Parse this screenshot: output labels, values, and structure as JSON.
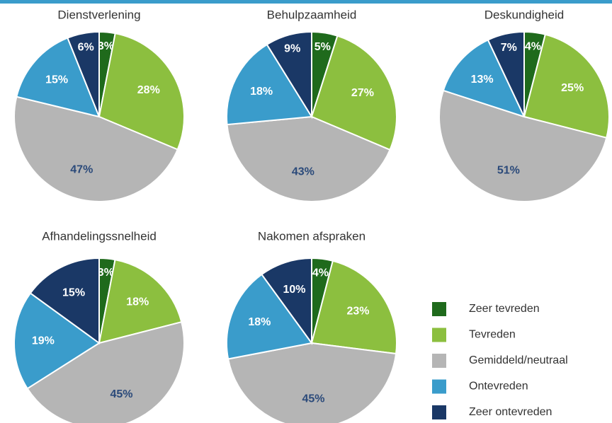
{
  "legend": {
    "names": [
      "Zeer tevreden",
      "Tevreden",
      "Gemiddeld/neutraal",
      "Ontevreden",
      "Zeer ontevreden"
    ],
    "colors": [
      "#1f6a1c",
      "#8cbf3f",
      "#b5b5b5",
      "#3a9ccb",
      "#1a3866"
    ]
  },
  "chart_data": [
    {
      "type": "pie",
      "title": "Dienstverlening",
      "values": [
        3,
        28,
        47,
        15,
        6
      ],
      "value_labels": [
        "3%",
        "28%",
        "47%",
        "15%",
        "6%"
      ]
    },
    {
      "type": "pie",
      "title": "Behulpzaamheid",
      "values": [
        5,
        27,
        43,
        18,
        9
      ],
      "value_labels": [
        "5%",
        "27%",
        "43%",
        "18%",
        "9%"
      ]
    },
    {
      "type": "pie",
      "title": "Deskundigheid",
      "values": [
        4,
        25,
        51,
        13,
        7
      ],
      "value_labels": [
        "4%",
        "25%",
        "51%",
        "13%",
        "7%"
      ]
    },
    {
      "type": "pie",
      "title": "Afhandelingssnelheid",
      "values": [
        3,
        18,
        45,
        19,
        15
      ],
      "value_labels": [
        "3%",
        "18%",
        "45%",
        "19%",
        "15%"
      ]
    },
    {
      "type": "pie",
      "title": "Nakomen afspraken",
      "values": [
        4,
        23,
        45,
        18,
        10
      ],
      "value_labels": [
        "4%",
        "23%",
        "45%",
        "18%",
        "10%"
      ]
    }
  ]
}
